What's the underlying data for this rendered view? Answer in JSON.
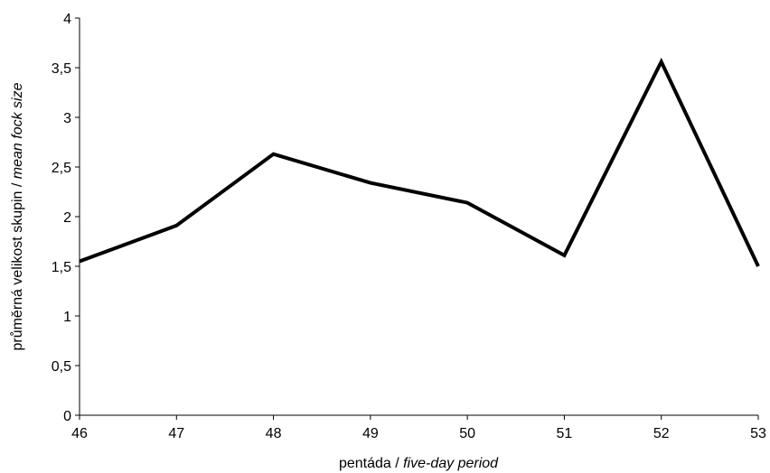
{
  "chart_data": {
    "type": "line",
    "title": "",
    "x": [
      46,
      47,
      48,
      49,
      50,
      51,
      52,
      53
    ],
    "x_tick_labels": [
      "46",
      "47",
      "48",
      "49",
      "50",
      "51",
      "52",
      "53"
    ],
    "xlim": [
      46,
      53
    ],
    "ylim": [
      0,
      4
    ],
    "y_ticks": [
      0,
      0.5,
      1,
      1.5,
      2,
      2.5,
      3,
      3.5,
      4
    ],
    "y_tick_labels": [
      "0",
      "0,5",
      "1",
      "1,5",
      "2",
      "2,5",
      "3",
      "3,5",
      "4"
    ],
    "xlabel": {
      "plain": "pentáda / ",
      "italic": "five-day period"
    },
    "ylabel": {
      "plain": "průměrná velikost skupin / ",
      "italic": "mean fock size"
    },
    "grid": false,
    "legend": "none",
    "series": [
      {
        "values": [
          1.55,
          1.91,
          2.63,
          2.34,
          2.14,
          1.61,
          3.56,
          1.5
        ],
        "color": "#000000"
      }
    ]
  }
}
